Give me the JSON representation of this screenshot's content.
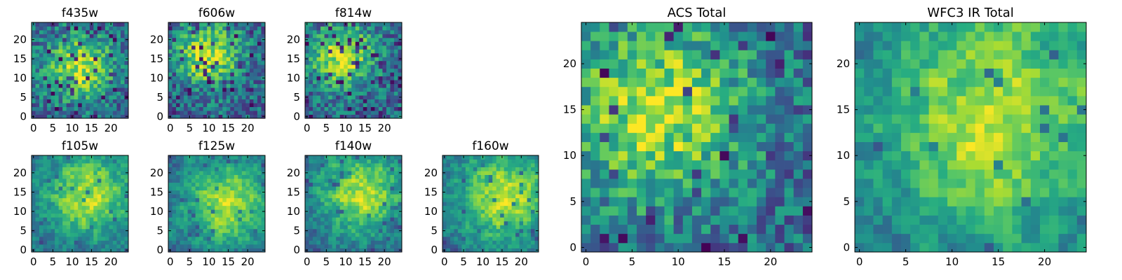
{
  "colormap": "viridis",
  "chart_data": [
    {
      "type": "heatmap",
      "title": "f435w",
      "grid_size": 25,
      "xticks": [
        0,
        5,
        10,
        15,
        20
      ],
      "yticks": [
        0,
        5,
        10,
        15,
        20
      ],
      "xlim": [
        0,
        25
      ],
      "ylim": [
        0,
        25
      ],
      "seed": 11,
      "smooth": 0,
      "bright_center": [
        12,
        13
      ],
      "bright_radius": 6,
      "dark_fraction": 0.1
    },
    {
      "type": "heatmap",
      "title": "f606w",
      "grid_size": 25,
      "xticks": [
        0,
        5,
        10,
        15,
        20
      ],
      "yticks": [
        0,
        5,
        10,
        15,
        20
      ],
      "xlim": [
        0,
        25
      ],
      "ylim": [
        0,
        25
      ],
      "seed": 23,
      "smooth": 0,
      "bright_center": [
        10,
        16
      ],
      "bright_radius": 6,
      "dark_fraction": 0.12
    },
    {
      "type": "heatmap",
      "title": "f814w",
      "grid_size": 25,
      "xticks": [
        0,
        5,
        10,
        15,
        20
      ],
      "yticks": [
        0,
        5,
        10,
        15,
        20
      ],
      "xlim": [
        0,
        25
      ],
      "ylim": [
        0,
        25
      ],
      "seed": 37,
      "smooth": 0,
      "bright_center": [
        9,
        16
      ],
      "bright_radius": 6,
      "dark_fraction": 0.1
    },
    {
      "type": "heatmap",
      "title": "f105w",
      "grid_size": 25,
      "xticks": [
        0,
        5,
        10,
        15,
        20
      ],
      "yticks": [
        0,
        5,
        10,
        15,
        20
      ],
      "xlim": [
        0,
        25
      ],
      "ylim": [
        0,
        25
      ],
      "seed": 41,
      "smooth": 1,
      "bright_center": [
        14,
        14
      ],
      "bright_radius": 8,
      "dark_fraction": 0.04
    },
    {
      "type": "heatmap",
      "title": "f125w",
      "grid_size": 25,
      "xticks": [
        0,
        5,
        10,
        15,
        20
      ],
      "yticks": [
        0,
        5,
        10,
        15,
        20
      ],
      "xlim": [
        0,
        25
      ],
      "ylim": [
        0,
        25
      ],
      "seed": 53,
      "smooth": 1,
      "bright_center": [
        15,
        12
      ],
      "bright_radius": 8,
      "dark_fraction": 0.05
    },
    {
      "type": "heatmap",
      "title": "f140w",
      "grid_size": 25,
      "xticks": [
        0,
        5,
        10,
        15,
        20
      ],
      "yticks": [
        0,
        5,
        10,
        15,
        20
      ],
      "xlim": [
        0,
        25
      ],
      "ylim": [
        0,
        25
      ],
      "seed": 67,
      "smooth": 1,
      "bright_center": [
        14,
        15
      ],
      "bright_radius": 8,
      "dark_fraction": 0.05
    },
    {
      "type": "heatmap",
      "title": "f160w",
      "grid_size": 25,
      "xticks": [
        0,
        5,
        10,
        15,
        20
      ],
      "yticks": [
        0,
        5,
        10,
        15,
        20
      ],
      "xlim": [
        0,
        25
      ],
      "ylim": [
        0,
        25
      ],
      "seed": 79,
      "smooth": 1,
      "bright_center": [
        16,
        14
      ],
      "bright_radius": 9,
      "dark_fraction": 0.04
    },
    {
      "type": "heatmap",
      "title": "ACS Total",
      "grid_size": 25,
      "xticks": [
        0,
        5,
        10,
        15,
        20
      ],
      "yticks": [
        0,
        5,
        10,
        15,
        20
      ],
      "xlim": [
        0,
        25
      ],
      "ylim": [
        0,
        25
      ],
      "seed": 97,
      "smooth": 0,
      "bright_center": [
        8,
        15
      ],
      "bright_radius": 7,
      "dark_fraction": 0.05
    },
    {
      "type": "heatmap",
      "title": "WFC3 IR Total",
      "grid_size": 25,
      "xticks": [
        0,
        5,
        10,
        15,
        20
      ],
      "yticks": [
        0,
        5,
        10,
        15,
        20
      ],
      "xlim": [
        0,
        25
      ],
      "ylim": [
        0,
        25
      ],
      "seed": 131,
      "smooth": 1,
      "bright_center": [
        15,
        14
      ],
      "bright_radius": 10,
      "dark_fraction": 0.03
    }
  ]
}
